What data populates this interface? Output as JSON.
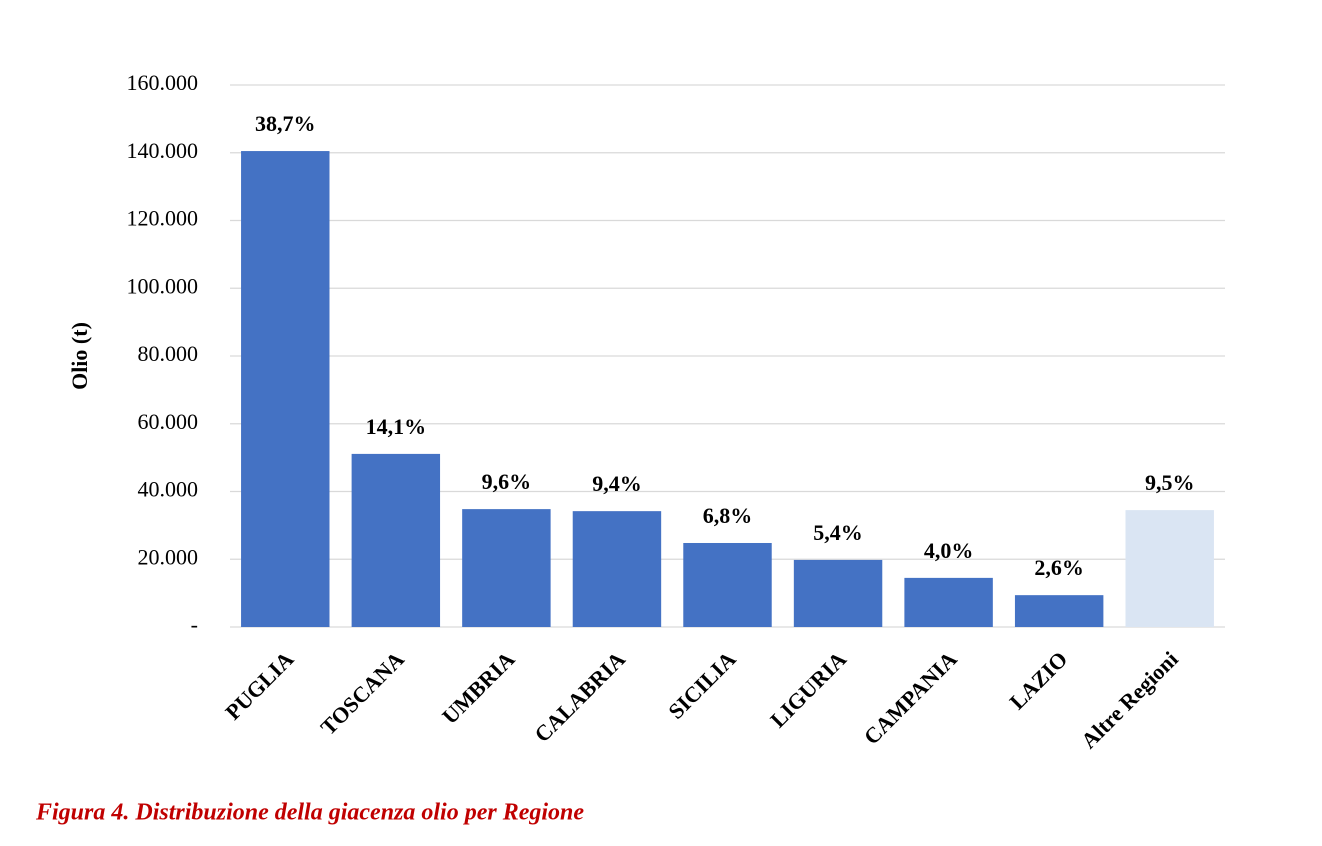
{
  "chart_data": {
    "type": "bar",
    "y_label": "Olio (t)",
    "caption": "Figura 4. Distribuzione della giacenza olio per Regione",
    "categories": [
      "PUGLIA",
      "TOSCANA",
      "UMBRIA",
      "CALABRIA",
      "SICILIA",
      "LIGURIA",
      "CAMPANIA",
      "LAZIO",
      "Altre Regioni"
    ],
    "values": [
      140500,
      51100,
      34800,
      34200,
      24800,
      19800,
      14500,
      9400,
      34500
    ],
    "percent_labels": [
      "38,7%",
      "14,1%",
      "9,6%",
      "9,4%",
      "6,8%",
      "5,4%",
      "4,0%",
      "2,6%",
      "9,5%"
    ],
    "colors": [
      "#4472c4",
      "#4472c4",
      "#4472c4",
      "#4472c4",
      "#4472c4",
      "#4472c4",
      "#4472c4",
      "#4472c4",
      "#dae5f3"
    ],
    "ylim": [
      0,
      160000
    ],
    "yticks": [
      {
        "value": 0,
        "label": "-"
      },
      {
        "value": 20000,
        "label": "20.000"
      },
      {
        "value": 40000,
        "label": "40.000"
      },
      {
        "value": 60000,
        "label": "60.000"
      },
      {
        "value": 80000,
        "label": "80.000"
      },
      {
        "value": 100000,
        "label": "100.000"
      },
      {
        "value": 120000,
        "label": "120.000"
      },
      {
        "value": 140000,
        "label": "140.000"
      },
      {
        "value": 160000,
        "label": "160.000"
      }
    ],
    "grid": true
  }
}
